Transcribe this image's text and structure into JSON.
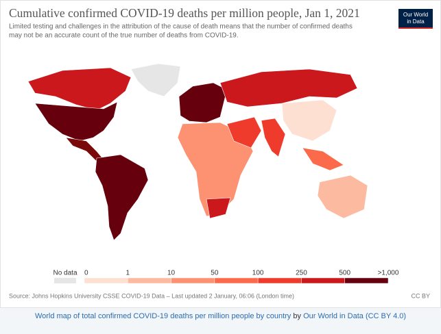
{
  "header": {
    "title": "Cumulative confirmed COVID-19 deaths per million people, Jan 1, 2021",
    "subtitle": [
      "Limited testing and challenges in the attribution of the cause of death means that the number of confirmed deaths",
      "may not be an accurate count of the true number of deaths from COVID-19."
    ],
    "logo": [
      "Our World",
      "in Data"
    ]
  },
  "legend": {
    "no_data": "No data",
    "no_data_color": "#e6e6e6",
    "ticks": [
      "0",
      "1",
      "10",
      "50",
      "100",
      "250",
      "500",
      ">1,000"
    ],
    "colors": [
      "#fde0d2",
      "#fcbba1",
      "#fc9272",
      "#fb6a4a",
      "#ef3b2c",
      "#cb181d",
      "#67000d"
    ]
  },
  "footer": {
    "source": "Source: Johns Hopkins University CSSE COVID-19 Data – Last updated 2 January, 06:06 (London time)",
    "license": "CC BY"
  },
  "caption": {
    "text": "World map of total confirmed COVID-19 deaths per million people by country",
    "by": "by",
    "link": "Our World in Data",
    "license": "(CC BY 4.0)"
  }
}
